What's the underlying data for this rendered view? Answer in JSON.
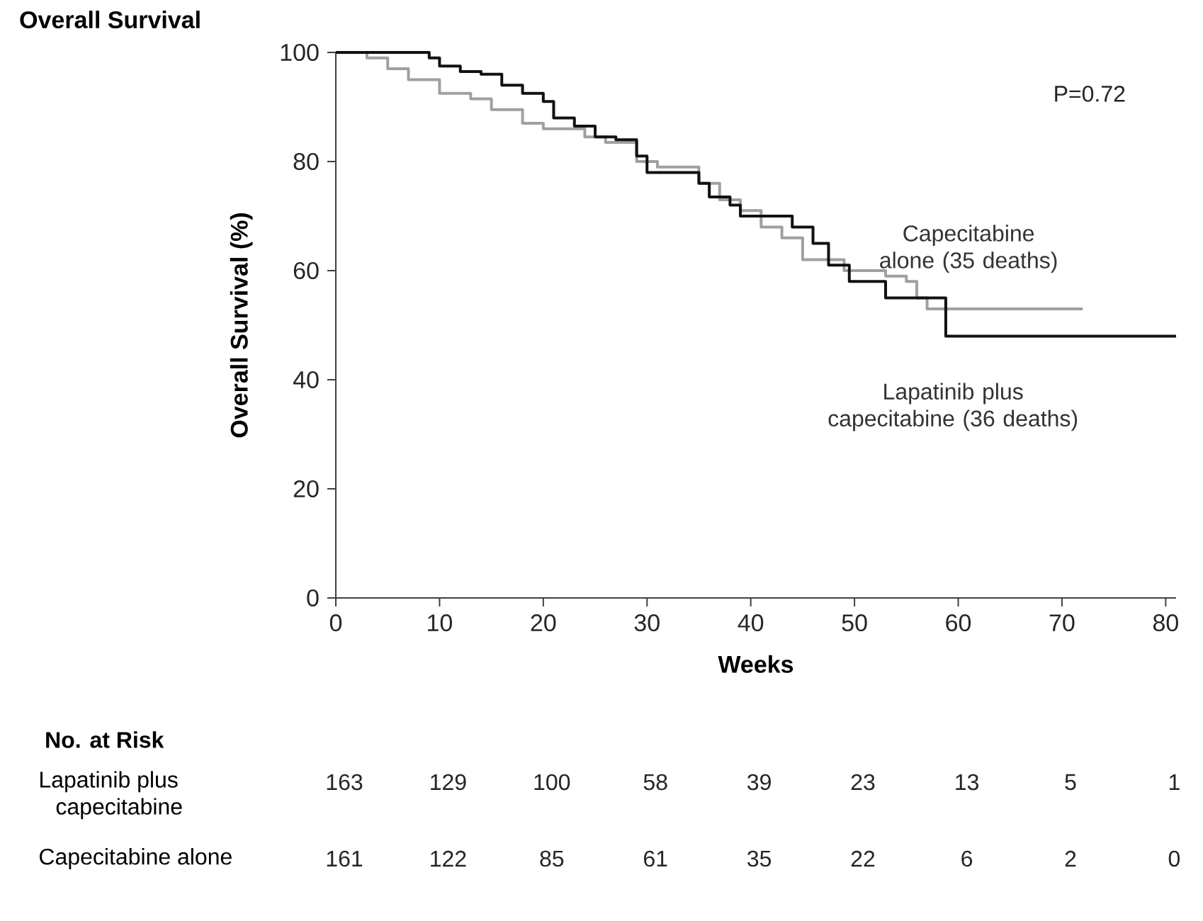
{
  "chart_data": {
    "type": "step",
    "title": "Overall Survival",
    "xlabel": "Weeks",
    "ylabel": "Overall Survival (%)",
    "xlim": [
      0,
      81
    ],
    "ylim": [
      0,
      100
    ],
    "xticks": [
      0,
      10,
      20,
      30,
      40,
      50,
      60,
      70,
      80
    ],
    "yticks": [
      0,
      20,
      40,
      60,
      80,
      100
    ],
    "grid": false,
    "series": [
      {
        "name": "Capecitabine alone (35 deaths)",
        "color": "#a0a0a0",
        "x": [
          0,
          3,
          5,
          7,
          10,
          13,
          15,
          18,
          20,
          24,
          26,
          29,
          31,
          33,
          35,
          37,
          39,
          41,
          43,
          45,
          48,
          49,
          53,
          55,
          56,
          57,
          72
        ],
        "values": [
          100,
          99,
          97,
          95,
          92.5,
          91.5,
          89.5,
          87,
          86,
          84.5,
          83.5,
          80,
          79,
          79,
          76,
          73,
          71,
          68,
          66,
          62,
          62,
          60,
          59,
          58,
          55,
          53,
          53
        ]
      },
      {
        "name": "Lapatinib plus capecitabine (36 deaths)",
        "color": "#111111",
        "x": [
          0,
          8,
          9,
          10,
          12,
          14,
          16,
          18,
          20,
          21,
          23,
          25,
          27,
          29,
          30,
          33,
          35,
          36,
          38,
          39,
          43,
          44,
          46,
          47.5,
          49.5,
          53,
          58.8,
          81
        ],
        "values": [
          100,
          100,
          99,
          97.5,
          96.5,
          96,
          94,
          92.5,
          91,
          88,
          86.5,
          84.5,
          84,
          81,
          78,
          78,
          76,
          73.5,
          72,
          70,
          70,
          68,
          65,
          61,
          58,
          55,
          48,
          48
        ]
      }
    ],
    "annotations": [
      "P=0.72",
      "No. at Risk",
      "Lapatinib plus capecitabine",
      "Capecitabine alone",
      "163",
      "129",
      "100",
      "58",
      "39",
      "23",
      "13",
      "5",
      "1",
      "161",
      "122",
      "85",
      "61",
      "35",
      "22",
      "6",
      "2",
      "0"
    ]
  }
}
